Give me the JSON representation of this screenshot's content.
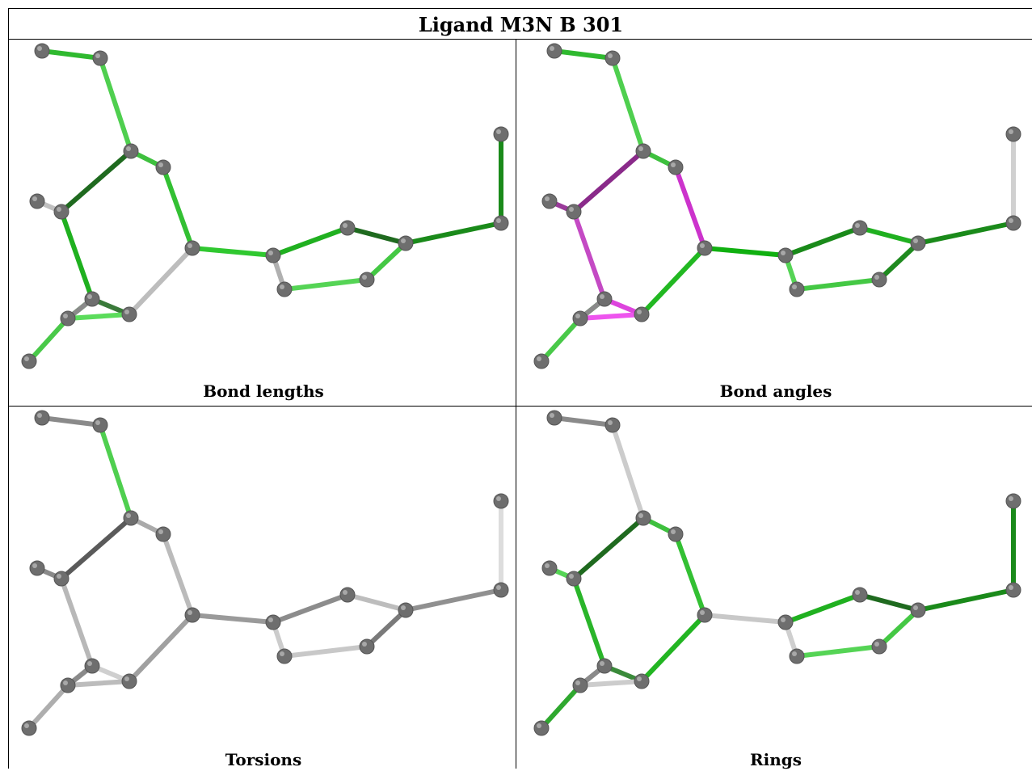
{
  "title": "Ligand M3N B 301",
  "panels": [
    {
      "caption": "Bond lengths",
      "bond_colors": [
        "#2fb92f",
        "#4fcf4f",
        "#3ec03e",
        "#1f6a1f",
        "#33c033",
        "#30c830",
        "#bdbdbd",
        "#b0b0b0",
        "#55d455",
        "#44c844",
        "#1f6a1f",
        "#20b020",
        "#1a8a1a",
        "#1a8a1a",
        "#c0c0c0",
        "#1fb01f",
        "#3a7a3a",
        "#5bdc5b",
        "#22b522",
        "#49c949",
        "#8a8a8a"
      ]
    },
    {
      "caption": "Bond angles",
      "bond_colors": [
        "#2fb92f",
        "#4fcf4f",
        "#3ec03e",
        "#8a2a8a",
        "#cc33cc",
        "#10b010",
        "#22b822",
        "#55d455",
        "#44c844",
        "#1f8a1f",
        "#20b020",
        "#1a8a1a",
        "#1a8a1a",
        "#d0d0d0",
        "#9a3a9a",
        "#c44ac4",
        "#dd44dd",
        "#ee55ee",
        "#2ab52a",
        "#49c949",
        "#8a8a8a"
      ]
    },
    {
      "caption": "Torsions",
      "bond_colors": [
        "#8a8a8a",
        "#4fcf4f",
        "#aaaaaa",
        "#5a5a5a",
        "#bbbbbb",
        "#9a9a9a",
        "#a0a0a0",
        "#cccccc",
        "#c8c8c8",
        "#7a7a7a",
        "#bdbdbd",
        "#8c8c8c",
        "#909090",
        "#dddddd",
        "#8a8a8a",
        "#b8b8b8",
        "#cfcfcf",
        "#bcbcbc",
        "#9e9e9e",
        "#aeaeae",
        "#8a8a8a"
      ]
    },
    {
      "caption": "Rings",
      "bond_colors": [
        "#8a8a8a",
        "#cccccc",
        "#3ec03e",
        "#1f6a1f",
        "#33c033",
        "#c8c8c8",
        "#22b522",
        "#cfcfcf",
        "#55d455",
        "#44c844",
        "#1f6a1f",
        "#20b020",
        "#1a8a1a",
        "#1a8a1a",
        "#55d455",
        "#2ab52a",
        "#3a8a3a",
        "#cccccc",
        "#bdbdbd",
        "#2fa82f",
        "#8a8a8a"
      ]
    }
  ]
}
